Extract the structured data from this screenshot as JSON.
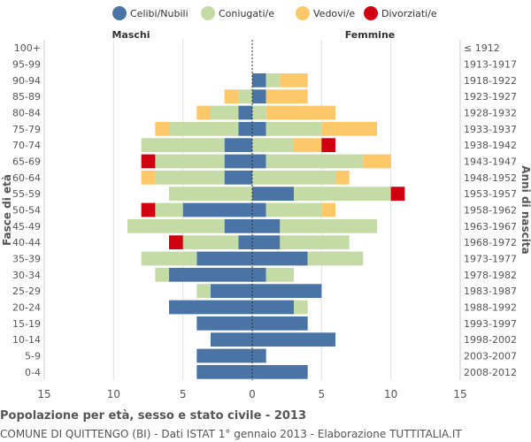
{
  "chart_data": {
    "type": "bar",
    "orientation": "horizontal-population-pyramid",
    "title": "Popolazione per età, sesso e stato civile - 2013",
    "subtitle": "COMUNE DI QUITTENGO (BI) - Dati ISTAT 1° gennaio 2013 - Elaborazione TUTTITALIA.IT",
    "left_group_label": "Maschi",
    "right_group_label": "Femmine",
    "ylabel_left": "Fasce di età",
    "ylabel_right": "Anni di nascita",
    "xlim": [
      -15,
      15
    ],
    "x_ticks": [
      -15,
      -10,
      -5,
      0,
      5,
      10,
      15
    ],
    "x_tick_labels": [
      "15",
      "10",
      "5",
      "0",
      "5",
      "10",
      "15"
    ],
    "categories": [
      "100+",
      "95-99",
      "90-94",
      "85-89",
      "80-84",
      "75-79",
      "70-74",
      "65-69",
      "60-64",
      "55-59",
      "50-54",
      "45-49",
      "40-44",
      "35-39",
      "30-34",
      "25-29",
      "20-24",
      "15-19",
      "10-14",
      "5-9",
      "0-4"
    ],
    "birth_years": [
      "≤ 1912",
      "1913-1917",
      "1918-1922",
      "1923-1927",
      "1928-1932",
      "1933-1937",
      "1938-1942",
      "1943-1947",
      "1948-1952",
      "1953-1957",
      "1958-1962",
      "1963-1967",
      "1968-1972",
      "1973-1977",
      "1978-1982",
      "1983-1987",
      "1988-1992",
      "1993-1997",
      "1998-2002",
      "2003-2007",
      "2008-2012"
    ],
    "legend": [
      {
        "name": "Celibi/Nubili",
        "color": "#4a74a5"
      },
      {
        "name": "Coniugati/e",
        "color": "#c5dba6"
      },
      {
        "name": "Vedovi/e",
        "color": "#fdc86a"
      },
      {
        "name": "Divorziati/e",
        "color": "#d10010"
      }
    ],
    "series_order": [
      "Celibi/Nubili",
      "Coniugati/e",
      "Vedovi/e",
      "Divorziati/e"
    ],
    "males": {
      "Celibi/Nubili": [
        0,
        0,
        0,
        0,
        1,
        1,
        2,
        2,
        2,
        0,
        5,
        2,
        1,
        4,
        6,
        3,
        6,
        4,
        3,
        4,
        4
      ],
      "Coniugati/e": [
        0,
        0,
        0,
        1,
        2,
        5,
        6,
        5,
        5,
        6,
        2,
        7,
        4,
        4,
        1,
        1,
        0,
        0,
        0,
        0,
        0
      ],
      "Vedovi/e": [
        0,
        0,
        0,
        1,
        1,
        1,
        0,
        0,
        1,
        0,
        0,
        0,
        0,
        0,
        0,
        0,
        0,
        0,
        0,
        0,
        0
      ],
      "Divorziati/e": [
        0,
        0,
        0,
        0,
        0,
        0,
        0,
        1,
        0,
        0,
        1,
        0,
        1,
        0,
        0,
        0,
        0,
        0,
        0,
        0,
        0
      ]
    },
    "females": {
      "Celibi/Nubili": [
        0,
        0,
        1,
        1,
        0,
        1,
        0,
        1,
        0,
        3,
        1,
        2,
        2,
        4,
        1,
        5,
        3,
        4,
        6,
        1,
        4
      ],
      "Coniugati/e": [
        0,
        0,
        1,
        0,
        1,
        4,
        3,
        7,
        6,
        7,
        4,
        7,
        5,
        4,
        2,
        0,
        1,
        0,
        0,
        0,
        0
      ],
      "Vedovi/e": [
        0,
        0,
        2,
        3,
        5,
        4,
        2,
        2,
        1,
        0,
        1,
        0,
        0,
        0,
        0,
        0,
        0,
        0,
        0,
        0,
        0
      ],
      "Divorziati/e": [
        0,
        0,
        0,
        0,
        0,
        0,
        1,
        0,
        0,
        1,
        0,
        0,
        0,
        0,
        0,
        0,
        0,
        0,
        0,
        0,
        0
      ]
    },
    "grid": true
  }
}
